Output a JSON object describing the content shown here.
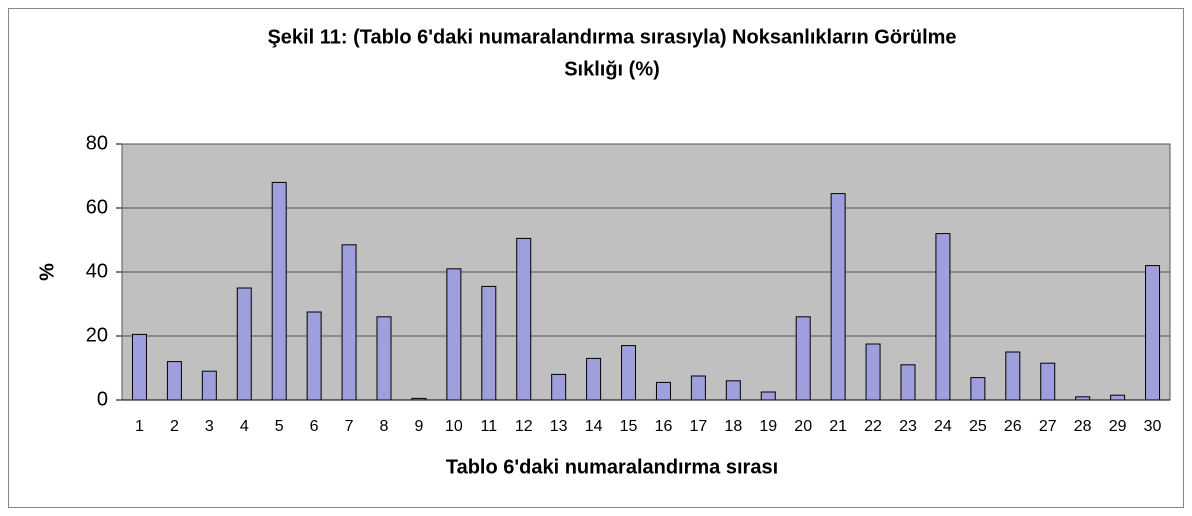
{
  "chart_data": {
    "type": "bar",
    "title": [
      "Şekil 11: (Tablo 6'daki numaralandırma sırasıyla) Noksanlıkların Görülme",
      "Sıklığı (%)"
    ],
    "x_label": "Tablo 6'daki numaralandırma sırası",
    "y_label": "%",
    "categories": [
      "1",
      "2",
      "3",
      "4",
      "5",
      "6",
      "7",
      "8",
      "9",
      "10",
      "11",
      "12",
      "13",
      "14",
      "15",
      "16",
      "17",
      "18",
      "19",
      "20",
      "21",
      "22",
      "23",
      "24",
      "25",
      "26",
      "27",
      "28",
      "29",
      "30"
    ],
    "values": [
      20.5,
      12,
      9,
      35,
      68,
      27.5,
      48.5,
      26,
      0.5,
      41,
      35.5,
      50.5,
      8,
      13,
      17,
      5.5,
      7.5,
      6,
      2.5,
      26,
      64.5,
      17.5,
      11,
      52,
      7,
      15,
      11.5,
      1,
      1.5,
      42
    ],
    "color": "#9f9fde",
    "ylim": [
      0,
      80
    ],
    "yticks": [
      0,
      20,
      40,
      60,
      80
    ],
    "grid": true
  }
}
